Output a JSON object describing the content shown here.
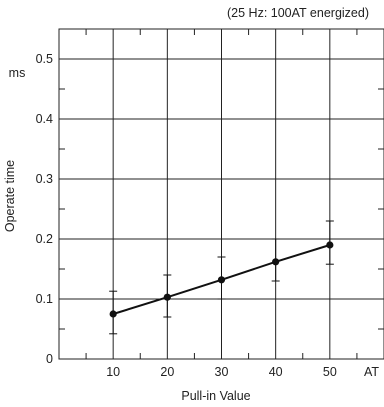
{
  "chart_data": {
    "type": "line",
    "title": "(25 Hz: 100AT energized)",
    "xlabel": "Pull-in Value",
    "ylabel": "Operate time",
    "y_unit": "ms",
    "x_unit": "AT",
    "xlim": [
      0,
      60
    ],
    "ylim": [
      0,
      0.55
    ],
    "x_ticks": [
      "10",
      "20",
      "30",
      "40",
      "50"
    ],
    "y_ticks": [
      "0",
      "0.1",
      "0.2",
      "0.3",
      "0.4",
      "0.5"
    ],
    "grid": true,
    "series": [
      {
        "x": [
          10,
          20,
          30,
          40,
          50
        ],
        "values": [
          0.075,
          0.103,
          0.132,
          0.162,
          0.19
        ],
        "error_max": [
          0.113,
          0.14,
          0.17,
          0.2,
          0.23
        ],
        "error_min": [
          0.042,
          0.07,
          0.1,
          0.13,
          0.158
        ]
      }
    ],
    "colors": {
      "line": "#111111",
      "grid": "#222222"
    }
  }
}
